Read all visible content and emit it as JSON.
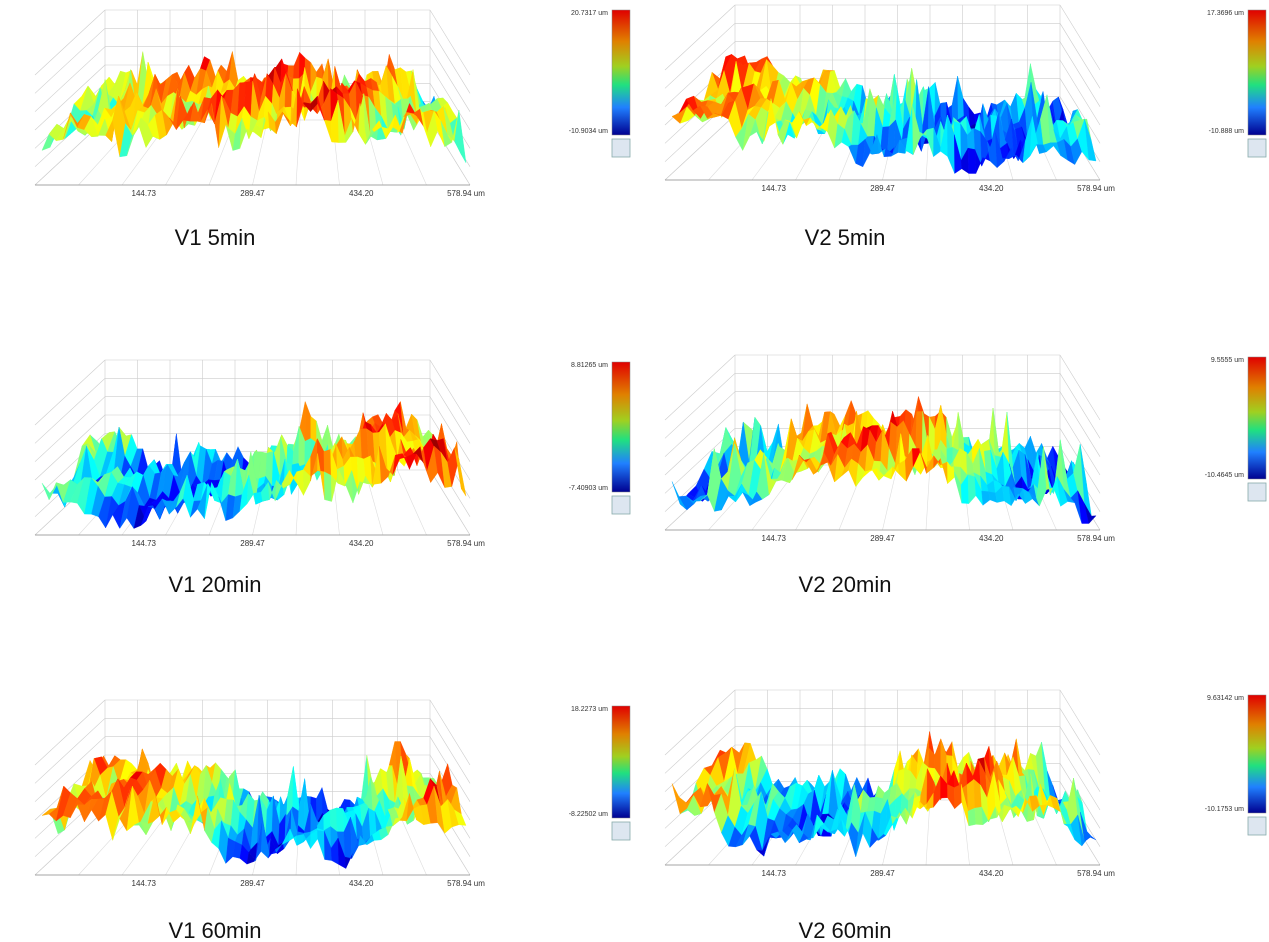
{
  "panels": [
    {
      "caption": "V1 5min",
      "colorbar": {
        "max": "20.7317 um",
        "min": "-10.9034 um"
      },
      "xticks": [
        "144.73",
        "289.47",
        "434.20",
        "578.94 um"
      ]
    },
    {
      "caption": "V2 5min",
      "colorbar": {
        "max": "17.3696 um",
        "min": "-10.888 um"
      },
      "xticks": [
        "144.73",
        "289.47",
        "434.20",
        "578.94 um"
      ]
    },
    {
      "caption": "V1 20min",
      "colorbar": {
        "max": "8.81265 um",
        "min": "-7.40903 um"
      },
      "xticks": [
        "144.73",
        "289.47",
        "434.20",
        "578.94 um"
      ]
    },
    {
      "caption": "V2 20min",
      "colorbar": {
        "max": "9.5555 um",
        "min": "-10.4645 um"
      },
      "xticks": [
        "144.73",
        "289.47",
        "434.20",
        "578.94 um"
      ]
    },
    {
      "caption": "V1 60min",
      "colorbar": {
        "max": "18.2273 um",
        "min": "-8.22502 um"
      },
      "xticks": [
        "144.73",
        "289.47",
        "434.20",
        "578.94 um"
      ]
    },
    {
      "caption": "V2 60min",
      "colorbar": {
        "max": "9.63142 um",
        "min": "-10.1753 um"
      },
      "xticks": [
        "144.73",
        "289.47",
        "434.20",
        "578.94 um"
      ]
    }
  ]
}
